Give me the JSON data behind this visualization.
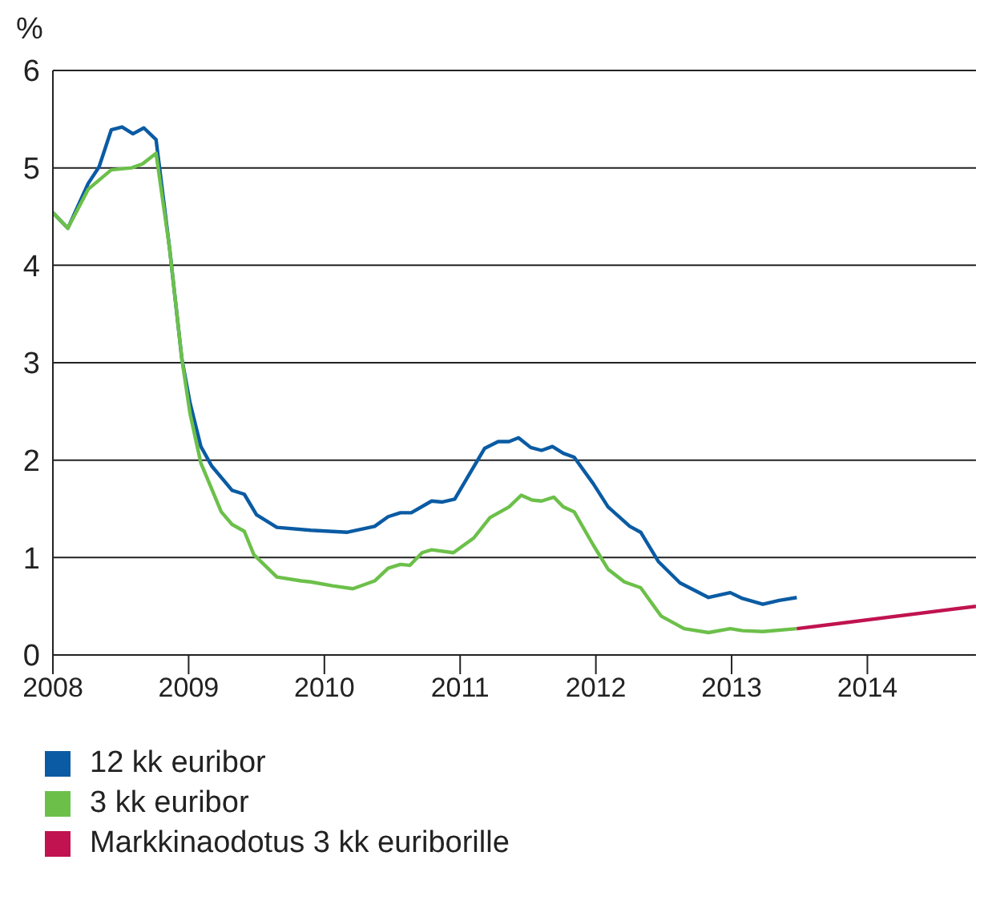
{
  "chart_data": {
    "type": "line",
    "ylabel": "%",
    "xlim": [
      2008,
      2014.8
    ],
    "xticks": [
      2008,
      2009,
      2010,
      2011,
      2012,
      2013,
      2014
    ],
    "ylim": [
      0,
      6
    ],
    "yticks": [
      0,
      1,
      2,
      3,
      4,
      5,
      6
    ],
    "grid": "y",
    "legend": "bottom",
    "marker": "none",
    "line_style": "solid",
    "series": [
      {
        "name": "12 kk euribor",
        "color": "#0a5ba3",
        "x": [
          2008.0,
          2008.11,
          2008.26,
          2008.34,
          2008.43,
          2008.51,
          2008.59,
          2008.67,
          2008.76,
          2008.86,
          2008.95,
          2009.01,
          2009.09,
          2009.17,
          2009.32,
          2009.41,
          2009.5,
          2009.65,
          2009.9,
          2010.17,
          2010.37,
          2010.47,
          2010.56,
          2010.64,
          2010.79,
          2010.87,
          2010.96,
          2011.07,
          2011.18,
          2011.28,
          2011.36,
          2011.43,
          2011.52,
          2011.6,
          2011.68,
          2011.76,
          2011.84,
          2011.98,
          2012.09,
          2012.25,
          2012.33,
          2012.46,
          2012.62,
          2012.83,
          2012.99,
          2013.08,
          2013.23,
          2013.35,
          2013.48
        ],
        "values": [
          4.54,
          4.38,
          4.84,
          5.01,
          5.39,
          5.42,
          5.35,
          5.41,
          5.29,
          4.17,
          3.04,
          2.59,
          2.14,
          1.94,
          1.69,
          1.65,
          1.44,
          1.31,
          1.28,
          1.26,
          1.32,
          1.42,
          1.46,
          1.46,
          1.58,
          1.57,
          1.6,
          1.86,
          2.12,
          2.19,
          2.19,
          2.23,
          2.13,
          2.1,
          2.14,
          2.07,
          2.03,
          1.76,
          1.52,
          1.32,
          1.26,
          0.96,
          0.74,
          0.59,
          0.64,
          0.58,
          0.52,
          0.56,
          0.59
        ]
      },
      {
        "name": "3 kk euribor",
        "color": "#6cc04a",
        "x": [
          2008.0,
          2008.11,
          2008.26,
          2008.43,
          2008.58,
          2008.66,
          2008.76,
          2008.86,
          2008.95,
          2009.01,
          2009.09,
          2009.24,
          2009.32,
          2009.41,
          2009.48,
          2009.65,
          2009.83,
          2009.9,
          2010.06,
          2010.21,
          2010.37,
          2010.47,
          2010.56,
          2010.63,
          2010.72,
          2010.79,
          2010.95,
          2011.1,
          2011.22,
          2011.36,
          2011.45,
          2011.53,
          2011.6,
          2011.69,
          2011.76,
          2011.84,
          2011.98,
          2012.09,
          2012.21,
          2012.33,
          2012.48,
          2012.65,
          2012.83,
          2012.99,
          2013.08,
          2013.23,
          2013.48
        ],
        "values": [
          4.54,
          4.38,
          4.78,
          4.98,
          5.0,
          5.04,
          5.15,
          4.17,
          3.04,
          2.48,
          1.97,
          1.47,
          1.34,
          1.27,
          1.03,
          0.8,
          0.76,
          0.75,
          0.71,
          0.68,
          0.76,
          0.89,
          0.93,
          0.92,
          1.05,
          1.08,
          1.05,
          1.2,
          1.41,
          1.52,
          1.64,
          1.59,
          1.58,
          1.62,
          1.52,
          1.47,
          1.13,
          0.88,
          0.75,
          0.69,
          0.4,
          0.27,
          0.23,
          0.27,
          0.25,
          0.24,
          0.27
        ]
      },
      {
        "name": "Markkinaodotus 3 kk euriborille",
        "color": "#c0134f",
        "x": [
          2013.48,
          2014.8
        ],
        "values": [
          0.27,
          0.5
        ]
      }
    ]
  }
}
